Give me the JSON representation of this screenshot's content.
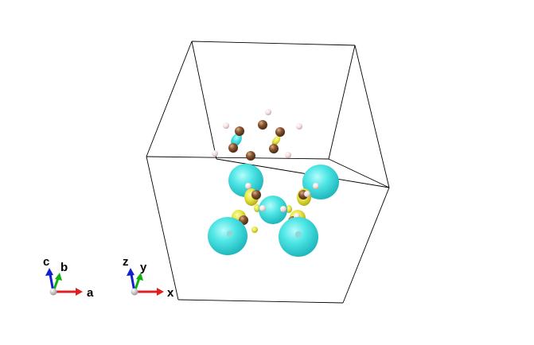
{
  "colors": {
    "background": "#ffffff",
    "cell_edge": "#000000",
    "isosurface_positive": "#3fe0df",
    "isosurface_negative": "#e8e64a",
    "carbon_atom": "#7a4a2a",
    "hydrogen_atom": "#f2d6d6",
    "axis_x": "#e02020",
    "axis_y": "#10b010",
    "axis_z": "#1020d0",
    "axis_origin": "#b0b0b0"
  },
  "crystal_axes": {
    "a_label": "a",
    "b_label": "b",
    "c_label": "c"
  },
  "cartesian_axes": {
    "x_label": "x",
    "y_label": "y",
    "z_label": "z"
  }
}
